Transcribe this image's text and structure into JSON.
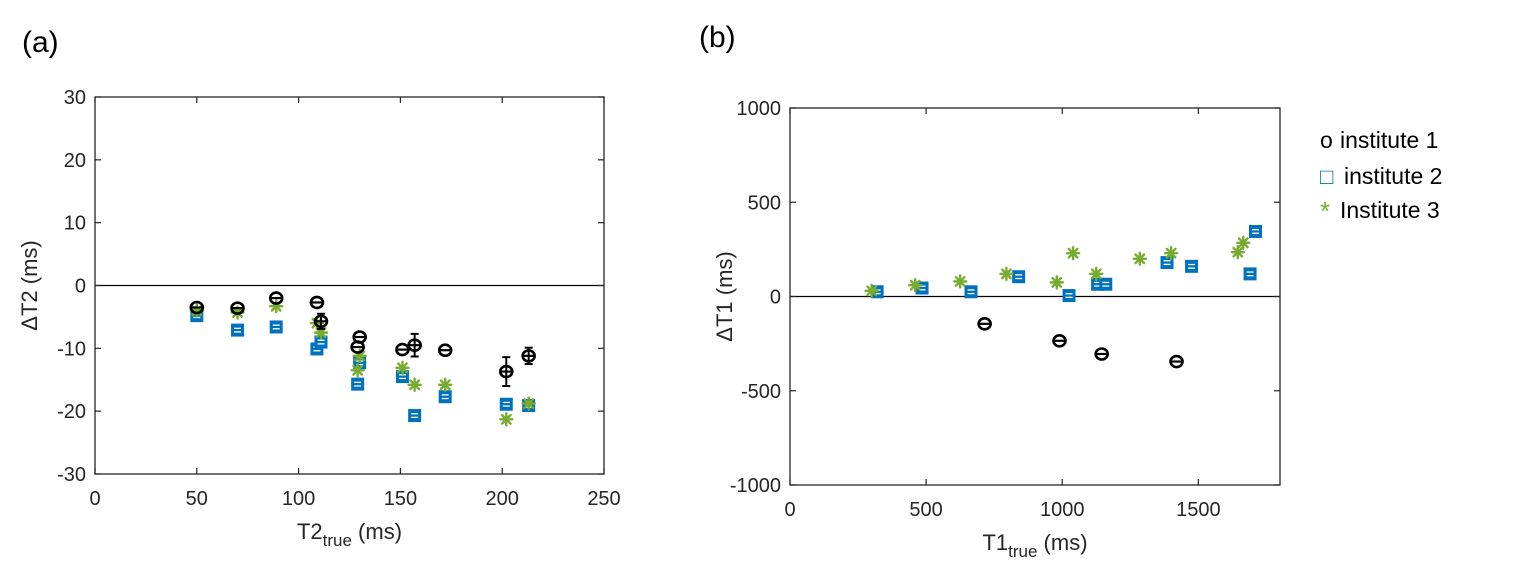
{
  "legend": {
    "items": [
      {
        "marker": "o",
        "label": "institute 1",
        "color": "#000000"
      },
      {
        "marker": "□",
        "label": "institute 2",
        "color": "#0072BD"
      },
      {
        "marker": "*",
        "label": "Institute 3",
        "color": "#77AC30"
      }
    ]
  },
  "chart_data": [
    {
      "panel": "(a)",
      "type": "scatter",
      "xlabel": "T2",
      "xlabel_sub": "true",
      "xlabel_unit": " (ms)",
      "ylabel": "ΔT2 (ms)",
      "xlim": [
        0,
        250
      ],
      "ylim": [
        -30,
        30
      ],
      "xticks": [
        0,
        50,
        100,
        150,
        200,
        250
      ],
      "yticks": [
        -30,
        -20,
        -10,
        0,
        10,
        20,
        30
      ],
      "reference_line": 0,
      "series": [
        {
          "name": "institute 1",
          "marker": "circle",
          "color": "#000000",
          "points": [
            {
              "x": 50,
              "y": -3.5,
              "err": 0.5
            },
            {
              "x": 70,
              "y": -3.6,
              "err": 0.5
            },
            {
              "x": 89,
              "y": -2.0,
              "err": 0.5
            },
            {
              "x": 109,
              "y": -2.7,
              "err": 0.5
            },
            {
              "x": 111,
              "y": -5.7,
              "err": 1.2
            },
            {
              "x": 129,
              "y": -9.8,
              "err": 0.8
            },
            {
              "x": 130,
              "y": -8.2,
              "err": 0.6
            },
            {
              "x": 151,
              "y": -10.2,
              "err": 0.6
            },
            {
              "x": 157,
              "y": -9.5,
              "err": 1.8
            },
            {
              "x": 172,
              "y": -10.3,
              "err": 0.6
            },
            {
              "x": 202,
              "y": -13.7,
              "err": 2.3
            },
            {
              "x": 213,
              "y": -11.2,
              "err": 1.3
            }
          ]
        },
        {
          "name": "institute 2",
          "marker": "square",
          "color": "#0072BD",
          "points": [
            {
              "x": 50,
              "y": -4.8
            },
            {
              "x": 70,
              "y": -7.1
            },
            {
              "x": 89,
              "y": -6.6
            },
            {
              "x": 109,
              "y": -10.1
            },
            {
              "x": 111,
              "y": -9.0
            },
            {
              "x": 129,
              "y": -15.7
            },
            {
              "x": 130,
              "y": -12.3
            },
            {
              "x": 151,
              "y": -14.5
            },
            {
              "x": 157,
              "y": -20.7
            },
            {
              "x": 172,
              "y": -17.7
            },
            {
              "x": 202,
              "y": -18.9
            },
            {
              "x": 213,
              "y": -19.1
            }
          ]
        },
        {
          "name": "Institute 3",
          "marker": "asterisk",
          "color": "#77AC30",
          "points": [
            {
              "x": 50,
              "y": -4.0
            },
            {
              "x": 70,
              "y": -4.3
            },
            {
              "x": 89,
              "y": -3.3
            },
            {
              "x": 109,
              "y": -6.0
            },
            {
              "x": 111,
              "y": -7.5
            },
            {
              "x": 129,
              "y": -13.5
            },
            {
              "x": 130,
              "y": -11.2
            },
            {
              "x": 151,
              "y": -13.1
            },
            {
              "x": 157,
              "y": -15.8
            },
            {
              "x": 172,
              "y": -15.8
            },
            {
              "x": 202,
              "y": -21.3
            },
            {
              "x": 213,
              "y": -18.8
            }
          ]
        }
      ]
    },
    {
      "panel": "(b)",
      "type": "scatter",
      "xlabel": "T1",
      "xlabel_sub": "true",
      "xlabel_unit": " (ms)",
      "ylabel": "ΔT1 (ms)",
      "xlim": [
        0,
        1800
      ],
      "ylim": [
        -1000,
        1000
      ],
      "xticks": [
        0,
        500,
        1000,
        1500
      ],
      "yticks": [
        -1000,
        -500,
        0,
        500,
        1000
      ],
      "reference_line": 0,
      "series": [
        {
          "name": "institute 1",
          "marker": "circle",
          "color": "#000000",
          "points": [
            {
              "x": 715,
              "y": -145,
              "err": 10
            },
            {
              "x": 990,
              "y": -235,
              "err": 10
            },
            {
              "x": 1145,
              "y": -305,
              "err": 10
            },
            {
              "x": 1420,
              "y": -345,
              "err": 10
            }
          ]
        },
        {
          "name": "institute 2",
          "marker": "square",
          "color": "#0072BD",
          "points": [
            {
              "x": 320,
              "y": 25
            },
            {
              "x": 485,
              "y": 45
            },
            {
              "x": 665,
              "y": 25
            },
            {
              "x": 840,
              "y": 105
            },
            {
              "x": 1025,
              "y": 5
            },
            {
              "x": 1130,
              "y": 65
            },
            {
              "x": 1160,
              "y": 65
            },
            {
              "x": 1385,
              "y": 180
            },
            {
              "x": 1475,
              "y": 160
            },
            {
              "x": 1690,
              "y": 120
            },
            {
              "x": 1710,
              "y": 345
            }
          ]
        },
        {
          "name": "Institute 3",
          "marker": "asterisk",
          "color": "#77AC30",
          "points": [
            {
              "x": 300,
              "y": 30
            },
            {
              "x": 460,
              "y": 60
            },
            {
              "x": 625,
              "y": 80
            },
            {
              "x": 795,
              "y": 120
            },
            {
              "x": 980,
              "y": 75
            },
            {
              "x": 1040,
              "y": 230
            },
            {
              "x": 1125,
              "y": 120
            },
            {
              "x": 1285,
              "y": 200
            },
            {
              "x": 1400,
              "y": 230
            },
            {
              "x": 1645,
              "y": 235
            },
            {
              "x": 1665,
              "y": 285
            }
          ]
        }
      ]
    }
  ]
}
